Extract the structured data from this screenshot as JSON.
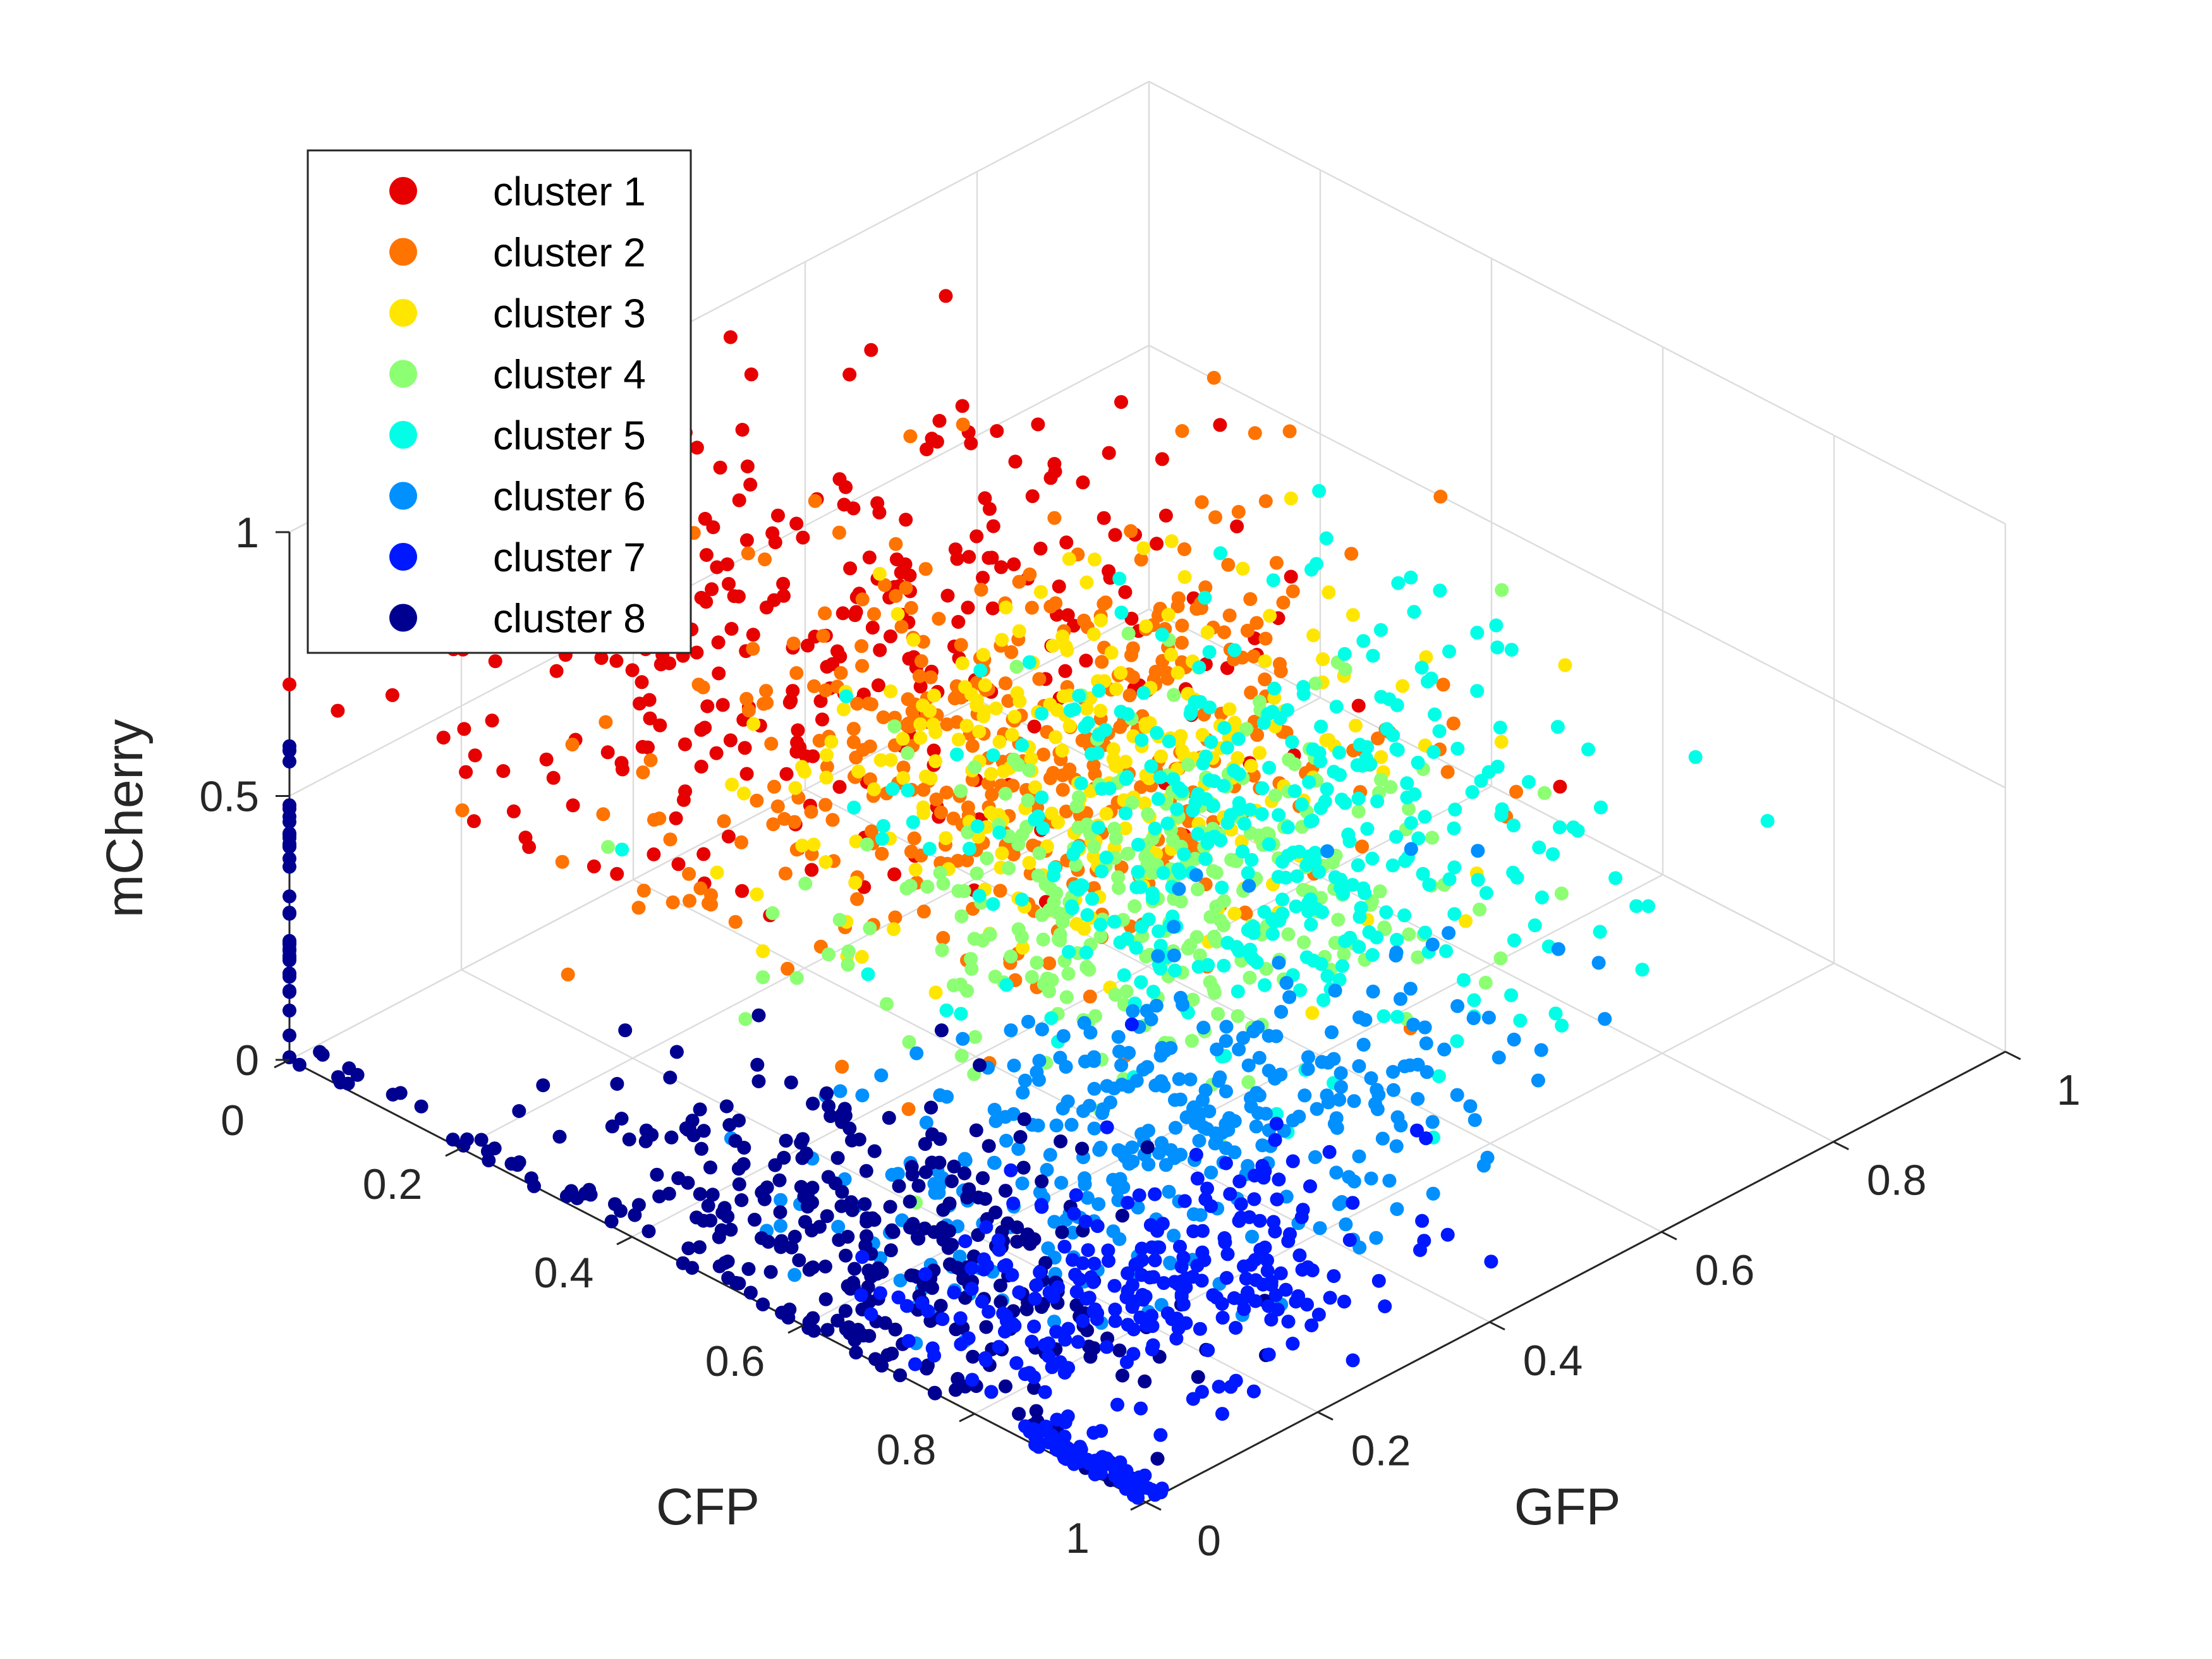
{
  "chart_data": {
    "type": "scatter",
    "dimensions": 3,
    "xlabel": "CFP",
    "ylabel": "GFP",
    "zlabel": "mCherry",
    "xlim": [
      0,
      1
    ],
    "ylim": [
      0,
      1
    ],
    "zlim": [
      0,
      1
    ],
    "x_ticks": [
      "0",
      "0.2",
      "0.4",
      "0.6",
      "0.8",
      "1"
    ],
    "y_ticks": [
      "0",
      "0.2",
      "0.4",
      "0.6",
      "0.8",
      "1"
    ],
    "z_ticks": [
      "0",
      "0.5",
      "1"
    ],
    "grid": true,
    "legend_position": "top-left",
    "series": [
      {
        "name": "cluster 1",
        "color": "#e60000",
        "centroid": {
          "x": 0.3,
          "y": 0.3,
          "z": 0.78
        }
      },
      {
        "name": "cluster 2",
        "color": "#ff7300",
        "centroid": {
          "x": 0.4,
          "y": 0.45,
          "z": 0.55
        }
      },
      {
        "name": "cluster 3",
        "color": "#ffe600",
        "centroid": {
          "x": 0.35,
          "y": 0.58,
          "z": 0.35
        }
      },
      {
        "name": "cluster 4",
        "color": "#8cff73",
        "centroid": {
          "x": 0.48,
          "y": 0.52,
          "z": 0.28
        }
      },
      {
        "name": "cluster 5",
        "color": "#00ffe6",
        "centroid": {
          "x": 0.45,
          "y": 0.7,
          "z": 0.2
        }
      },
      {
        "name": "cluster 6",
        "color": "#0090ff",
        "centroid": {
          "x": 0.68,
          "y": 0.35,
          "z": 0.15
        }
      },
      {
        "name": "cluster 7",
        "color": "#0018ff",
        "centroid": {
          "x": 0.8,
          "y": 0.2,
          "z": 0.08
        }
      },
      {
        "name": "cluster 8",
        "color": "#000090",
        "centroid": {
          "x": 0.6,
          "y": 0.08,
          "z": 0.1
        }
      }
    ]
  }
}
